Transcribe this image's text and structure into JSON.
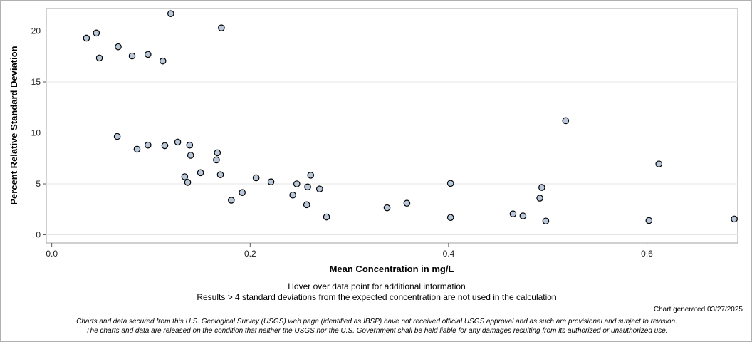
{
  "chart_data": {
    "type": "scatter",
    "xlabel": "Mean Concentration in mg/L",
    "ylabel": "Percent Relative Standard Deviation",
    "xlim": [
      -0.0055,
      0.6915
    ],
    "ylim": [
      -0.8,
      22.2
    ],
    "x_ticks": [
      0.0,
      0.2,
      0.4,
      0.6
    ],
    "x_tick_labels": [
      "0.0",
      "0.2",
      "0.4",
      "0.6"
    ],
    "y_ticks": [
      0,
      5,
      10,
      15,
      20
    ],
    "y_tick_labels": [
      "0",
      "5",
      "10",
      "15",
      "20"
    ],
    "grid": true,
    "marker_fill": "#b8c8da",
    "marker_stroke": "#000000",
    "points": [
      {
        "x": 0.035,
        "y": 19.3
      },
      {
        "x": 0.045,
        "y": 19.8
      },
      {
        "x": 0.048,
        "y": 17.35
      },
      {
        "x": 0.067,
        "y": 18.45
      },
      {
        "x": 0.081,
        "y": 17.55
      },
      {
        "x": 0.097,
        "y": 17.7
      },
      {
        "x": 0.112,
        "y": 17.05
      },
      {
        "x": 0.12,
        "y": 21.7
      },
      {
        "x": 0.171,
        "y": 20.3
      },
      {
        "x": 0.066,
        "y": 9.65
      },
      {
        "x": 0.086,
        "y": 8.4
      },
      {
        "x": 0.097,
        "y": 8.8
      },
      {
        "x": 0.114,
        "y": 8.75
      },
      {
        "x": 0.127,
        "y": 9.1
      },
      {
        "x": 0.139,
        "y": 8.8
      },
      {
        "x": 0.14,
        "y": 7.8
      },
      {
        "x": 0.167,
        "y": 8.05
      },
      {
        "x": 0.166,
        "y": 7.35
      },
      {
        "x": 0.134,
        "y": 5.7
      },
      {
        "x": 0.137,
        "y": 5.15
      },
      {
        "x": 0.15,
        "y": 6.1
      },
      {
        "x": 0.17,
        "y": 5.9
      },
      {
        "x": 0.181,
        "y": 3.4
      },
      {
        "x": 0.192,
        "y": 4.15
      },
      {
        "x": 0.206,
        "y": 5.6
      },
      {
        "x": 0.221,
        "y": 5.2
      },
      {
        "x": 0.243,
        "y": 3.9
      },
      {
        "x": 0.247,
        "y": 5.0
      },
      {
        "x": 0.258,
        "y": 4.7
      },
      {
        "x": 0.261,
        "y": 5.85
      },
      {
        "x": 0.257,
        "y": 2.95
      },
      {
        "x": 0.27,
        "y": 4.5
      },
      {
        "x": 0.277,
        "y": 1.75
      },
      {
        "x": 0.338,
        "y": 2.65
      },
      {
        "x": 0.358,
        "y": 3.1
      },
      {
        "x": 0.402,
        "y": 5.05
      },
      {
        "x": 0.402,
        "y": 1.7
      },
      {
        "x": 0.465,
        "y": 2.05
      },
      {
        "x": 0.475,
        "y": 1.85
      },
      {
        "x": 0.492,
        "y": 3.6
      },
      {
        "x": 0.494,
        "y": 4.65
      },
      {
        "x": 0.498,
        "y": 1.35
      },
      {
        "x": 0.518,
        "y": 11.2
      },
      {
        "x": 0.602,
        "y": 1.4
      },
      {
        "x": 0.612,
        "y": 6.95
      },
      {
        "x": 0.688,
        "y": 1.55
      }
    ]
  },
  "notes": {
    "hover": "Hover over data point for additional information",
    "results": "Results > 4 standard deviations from the expected concentration are not used in the calculation",
    "generated": "Chart generated 03/27/2025",
    "disclaimer_line1": "Charts and data secured from this U.S. Geological Survey (USGS) web page (identified as IBSP) have not received official USGS approval and as such are provisional and subject to revision.",
    "disclaimer_line2": "The charts and data are released on the condition that neither the USGS nor the U.S. Government shall be held liable for any damages resulting from its authorized or unauthorized use."
  }
}
